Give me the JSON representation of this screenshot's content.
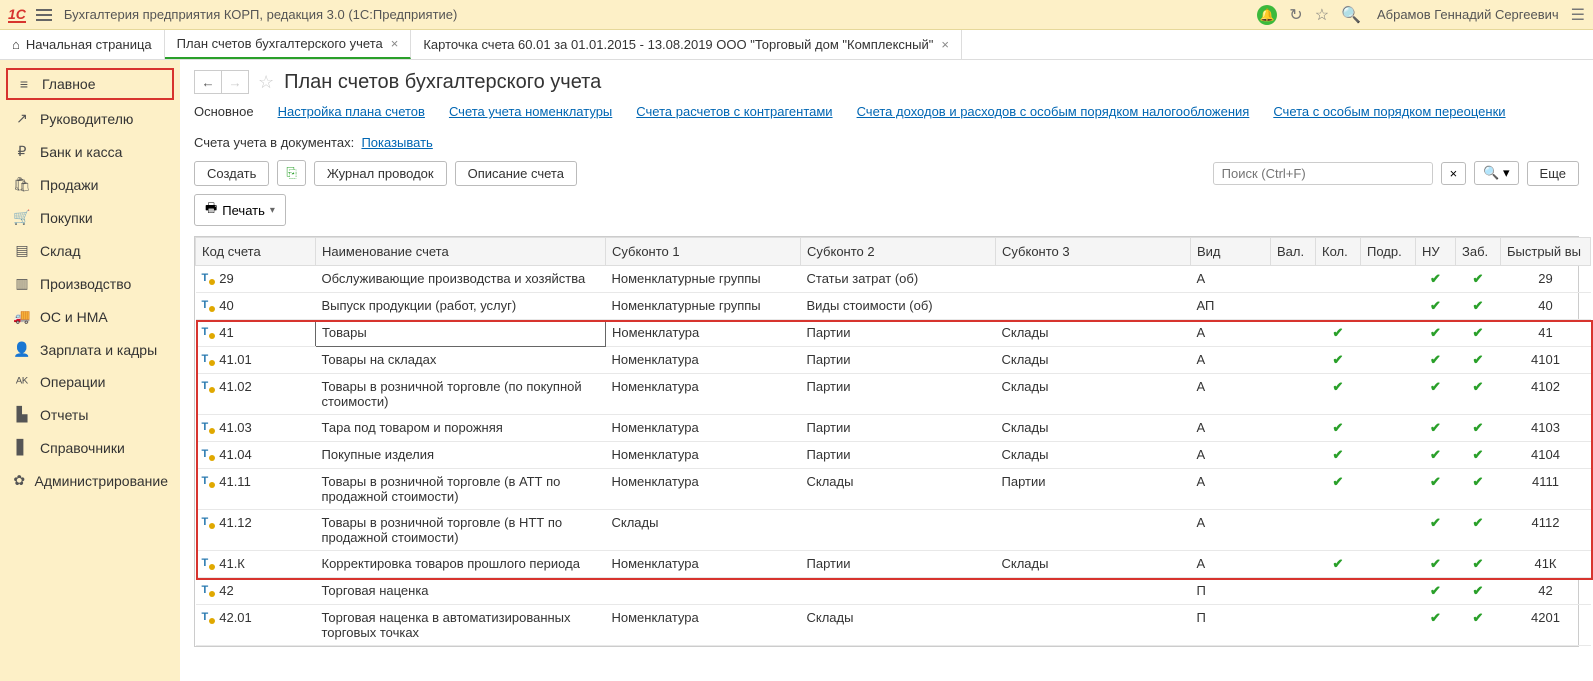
{
  "titlebar": {
    "app_title": "Бухгалтерия предприятия КОРП, редакция 3.0  (1С:Предприятие)",
    "user": "Абрамов Геннадий Сергеевич"
  },
  "tabs": {
    "home": "Начальная страница",
    "t1": "План счетов бухгалтерского учета",
    "t2": "Карточка счета 60.01 за 01.01.2015 - 13.08.2019 ООО \"Торговый дом \"Комплексный\""
  },
  "sidebar": [
    {
      "icon": "≡",
      "label": "Главное",
      "active": true
    },
    {
      "icon": "↗",
      "label": "Руководителю"
    },
    {
      "icon": "₽",
      "label": "Банк и касса"
    },
    {
      "icon": "🛍",
      "label": "Продажи"
    },
    {
      "icon": "🛒",
      "label": "Покупки"
    },
    {
      "icon": "▤",
      "label": "Склад"
    },
    {
      "icon": "▥",
      "label": "Производство"
    },
    {
      "icon": "🚚",
      "label": "ОС и НМА"
    },
    {
      "icon": "👤",
      "label": "Зарплата и кадры"
    },
    {
      "icon": "ᴬᴷ",
      "label": "Операции"
    },
    {
      "icon": "▙",
      "label": "Отчеты"
    },
    {
      "icon": "▋",
      "label": "Справочники"
    },
    {
      "icon": "✿",
      "label": "Администрирование"
    }
  ],
  "page": {
    "title": "План счетов бухгалтерского учета",
    "sublinks": [
      {
        "label": "Основное",
        "active": true
      },
      {
        "label": "Настройка плана счетов"
      },
      {
        "label": "Счета учета номенклатуры"
      },
      {
        "label": "Счета расчетов с контрагентами"
      },
      {
        "label": "Счета доходов и расходов с особым порядком налогообложения"
      },
      {
        "label": "Счета с особым порядком переоценки"
      }
    ],
    "docline_label": "Счета учета в документах:",
    "docline_link": "Показывать",
    "toolbar": {
      "create": "Создать",
      "journal": "Журнал проводок",
      "desc": "Описание счета",
      "search_ph": "Поиск (Ctrl+F)",
      "more": "Еще"
    },
    "print": "Печать",
    "columns": [
      "Код счета",
      "Наименование счета",
      "Субконто 1",
      "Субконто 2",
      "Субконто 3",
      "Вид",
      "Вал.",
      "Кол.",
      "Подр.",
      "НУ",
      "Заб.",
      "Быстрый вы"
    ],
    "rows": [
      {
        "code": "29",
        "name": "Обслуживающие производства и хозяйства",
        "s1": "Номенклатурные группы",
        "s2": "Статьи затрат (об)",
        "s3": "",
        "vid": "А",
        "nu": true,
        "zab": true,
        "fast": "29"
      },
      {
        "code": "40",
        "name": "Выпуск продукции (работ, услуг)",
        "s1": "Номенклатурные группы",
        "s2": "Виды стоимости (об)",
        "s3": "",
        "vid": "АП",
        "nu": true,
        "zab": true,
        "fast": "40"
      },
      {
        "code": "41",
        "name": "Товары",
        "s1": "Номенклатура",
        "s2": "Партии",
        "s3": "Склады",
        "vid": "А",
        "kol": true,
        "nu": true,
        "zab": true,
        "fast": "41",
        "hl": true,
        "sel": true
      },
      {
        "code": "41.01",
        "name": "Товары на складах",
        "s1": "Номенклатура",
        "s2": "Партии",
        "s3": "Склады",
        "vid": "А",
        "kol": true,
        "nu": true,
        "zab": true,
        "fast": "4101",
        "hl": true
      },
      {
        "code": "41.02",
        "name": "Товары в розничной торговле (по покупной стоимости)",
        "s1": "Номенклатура",
        "s2": "Партии",
        "s3": "Склады",
        "vid": "А",
        "kol": true,
        "nu": true,
        "zab": true,
        "fast": "4102",
        "hl": true
      },
      {
        "code": "41.03",
        "name": "Тара под товаром и порожняя",
        "s1": "Номенклатура",
        "s2": "Партии",
        "s3": "Склады",
        "vid": "А",
        "kol": true,
        "nu": true,
        "zab": true,
        "fast": "4103",
        "hl": true
      },
      {
        "code": "41.04",
        "name": "Покупные изделия",
        "s1": "Номенклатура",
        "s2": "Партии",
        "s3": "Склады",
        "vid": "А",
        "kol": true,
        "nu": true,
        "zab": true,
        "fast": "4104",
        "hl": true
      },
      {
        "code": "41.11",
        "name": "Товары в розничной торговле (в АТТ по продажной стоимости)",
        "s1": "Номенклатура",
        "s2": "Склады",
        "s3": "Партии",
        "vid": "А",
        "kol": true,
        "nu": true,
        "zab": true,
        "fast": "4111",
        "hl": true
      },
      {
        "code": "41.12",
        "name": "Товары в розничной торговле (в НТТ по продажной стоимости)",
        "s1": "Склады",
        "s2": "",
        "s3": "",
        "vid": "А",
        "nu": true,
        "zab": true,
        "fast": "4112",
        "hl": true
      },
      {
        "code": "41.К",
        "name": "Корректировка товаров прошлого периода",
        "s1": "Номенклатура",
        "s2": "Партии",
        "s3": "Склады",
        "vid": "А",
        "kol": true,
        "nu": true,
        "zab": true,
        "fast": "41К",
        "hl": true
      },
      {
        "code": "42",
        "name": "Торговая наценка",
        "s1": "",
        "s2": "",
        "s3": "",
        "vid": "П",
        "nu": true,
        "zab": true,
        "fast": "42"
      },
      {
        "code": "42.01",
        "name": "Торговая наценка в автоматизированных торговых точках",
        "s1": "Номенклатура",
        "s2": "Склады",
        "s3": "",
        "vid": "П",
        "nu": true,
        "zab": true,
        "fast": "4201"
      }
    ]
  },
  "colors": {
    "accent": "#d7342e",
    "link": "#0066b3",
    "green": "#2aa02a",
    "header_bg": "#fdf0c7"
  }
}
